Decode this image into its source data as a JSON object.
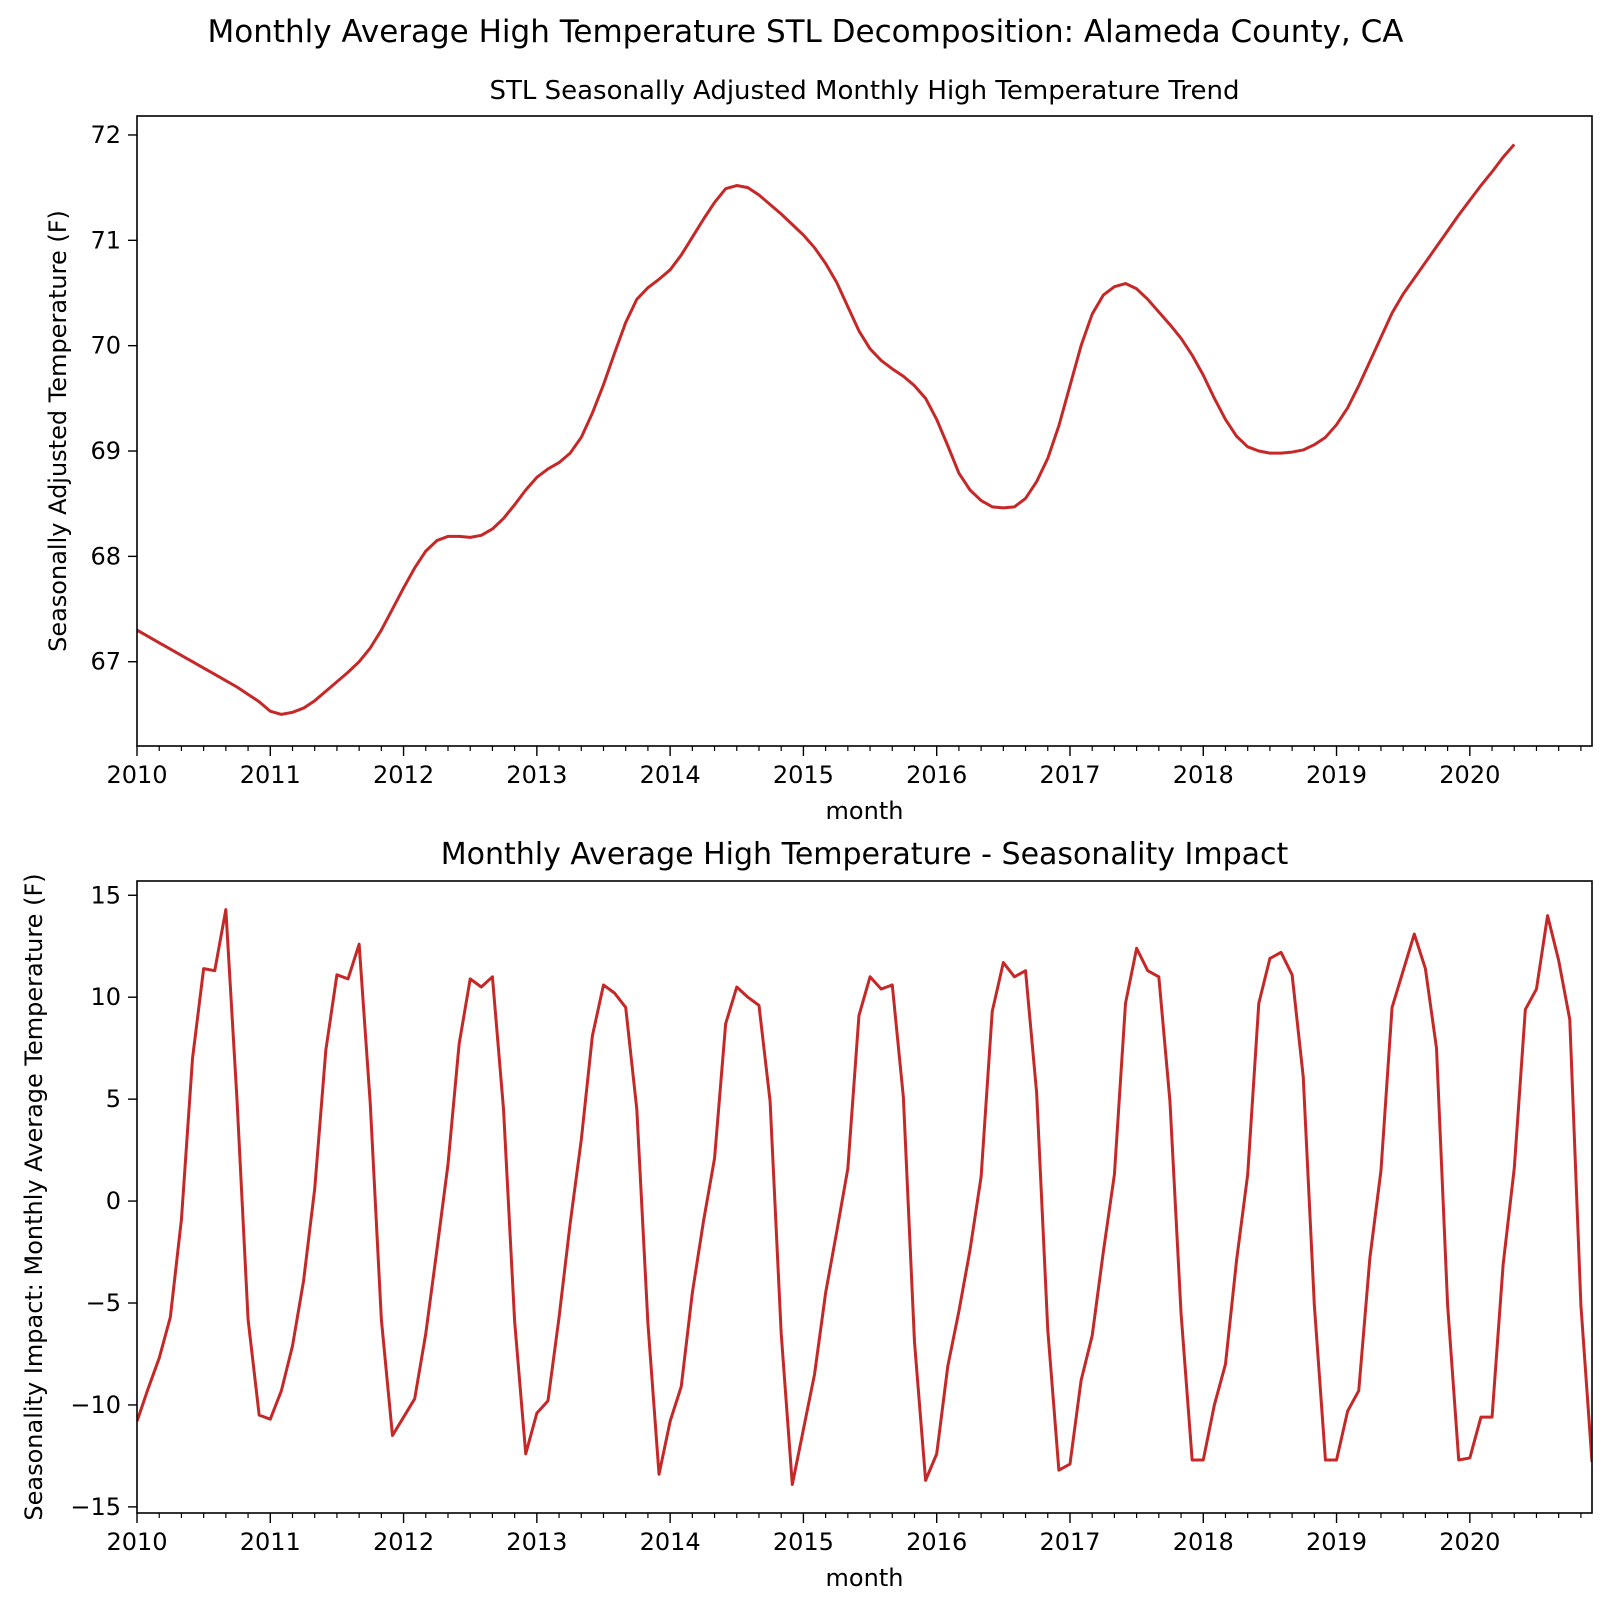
{
  "figure_title": "Monthly Average High Temperature STL Decomposition: Alameda County, CA",
  "line_color": "#c62828",
  "chart_data": [
    {
      "type": "line",
      "title": "STL Seasonally Adjusted Monthly High Temperature Trend",
      "xlabel": "month",
      "ylabel": "Seasonally Adjusted Temperature (F)",
      "x_start": "2010-01",
      "x_end": "2020-12",
      "xlim": [
        "2010-01",
        "2020-12"
      ],
      "ylim": [
        66.2,
        72.18
      ],
      "xticks": [
        "2010",
        "2011",
        "2012",
        "2013",
        "2014",
        "2015",
        "2016",
        "2017",
        "2018",
        "2019",
        "2020"
      ],
      "yticks": [
        "67",
        "68",
        "69",
        "70",
        "71",
        "72"
      ],
      "grid": false,
      "series": [
        {
          "values": [
            67.3,
            67.24,
            67.18,
            67.12,
            67.06,
            67.0,
            66.94,
            66.88,
            66.82,
            66.76,
            66.69,
            66.62,
            66.53,
            66.5,
            66.52,
            66.56,
            66.63,
            66.72,
            66.81,
            66.9,
            67.0,
            67.13,
            67.3,
            67.5,
            67.7,
            67.89,
            68.05,
            68.15,
            68.19,
            68.19,
            68.18,
            68.2,
            68.26,
            68.36,
            68.49,
            68.63,
            68.75,
            68.83,
            68.89,
            68.98,
            69.13,
            69.36,
            69.63,
            69.93,
            70.22,
            70.44,
            70.55,
            70.63,
            70.72,
            70.86,
            71.03,
            71.2,
            71.36,
            71.49,
            71.52,
            71.5,
            71.43,
            71.34,
            71.25,
            71.15,
            71.05,
            70.93,
            70.78,
            70.6,
            70.37,
            70.14,
            69.97,
            69.86,
            69.78,
            69.71,
            69.62,
            69.5,
            69.3,
            69.05,
            68.79,
            68.63,
            68.53,
            68.47,
            68.46,
            68.47,
            68.55,
            68.71,
            68.93,
            69.24,
            69.62,
            70.0,
            70.3,
            70.48,
            70.56,
            70.59,
            70.54,
            70.44,
            70.32,
            70.2,
            70.07,
            69.91,
            69.72,
            69.5,
            69.3,
            69.14,
            69.04,
            69.0,
            68.98,
            68.98,
            68.99,
            69.01,
            69.06,
            69.13,
            69.25,
            69.41,
            69.62,
            69.85,
            70.08,
            70.31,
            70.49,
            70.64,
            70.79,
            70.94,
            71.09,
            71.24,
            71.38,
            71.52,
            71.65,
            71.79,
            71.91
          ]
        }
      ]
    },
    {
      "type": "line",
      "title": "Monthly Average High Temperature - Seasonality Impact",
      "xlabel": "month",
      "ylabel": "Seasonality Impact: Monthly Average Temperature (F)",
      "x_start": "2010-01",
      "x_end": "2020-12",
      "xlim": [
        "2010-01",
        "2020-12"
      ],
      "ylim": [
        -15.3,
        15.7
      ],
      "xticks": [
        "2010",
        "2011",
        "2012",
        "2013",
        "2014",
        "2015",
        "2016",
        "2017",
        "2018",
        "2019",
        "2020"
      ],
      "yticks": [
        "−15",
        "−10",
        "−5",
        "0",
        "5",
        "10",
        "15"
      ],
      "grid": false,
      "series": [
        {
          "values": [
            -10.8,
            -9.2,
            -7.7,
            -5.7,
            -0.9,
            7.0,
            11.4,
            11.3,
            14.3,
            5.0,
            -5.8,
            -10.5,
            -10.7,
            -9.3,
            -7.1,
            -3.9,
            0.6,
            7.4,
            11.1,
            10.9,
            12.6,
            4.8,
            -5.8,
            -11.5,
            -10.6,
            -9.7,
            -6.5,
            -2.4,
            1.8,
            7.7,
            10.9,
            10.5,
            11.0,
            4.5,
            -5.9,
            -12.4,
            -10.4,
            -9.8,
            -5.7,
            -1.1,
            3.0,
            8.1,
            10.6,
            10.2,
            9.5,
            4.5,
            -6.0,
            -13.4,
            -10.8,
            -9.1,
            -4.5,
            -1.0,
            2.1,
            8.7,
            10.5,
            10.0,
            9.6,
            4.9,
            -6.5,
            -13.9,
            -11.2,
            -8.5,
            -4.5,
            -1.5,
            1.6,
            9.1,
            11.0,
            10.4,
            10.6,
            5.1,
            -6.9,
            -13.7,
            -12.4,
            -8.1,
            -5.4,
            -2.4,
            1.2,
            9.3,
            11.7,
            11.0,
            11.3,
            5.3,
            -6.3,
            -13.2,
            -12.9,
            -8.8,
            -6.6,
            -2.5,
            1.3,
            9.7,
            12.4,
            11.3,
            11.0,
            4.9,
            -5.5,
            -12.7,
            -12.7,
            -10.0,
            -8.0,
            -2.9,
            1.3,
            9.7,
            11.9,
            12.2,
            11.1,
            6.1,
            -5.1,
            -12.7,
            -12.7,
            -10.3,
            -9.3,
            -2.8,
            1.5,
            9.5,
            11.3,
            13.1,
            11.4,
            7.5,
            -5.1,
            -12.7,
            -12.6,
            -10.6,
            -10.6,
            -3.1,
            1.6,
            9.4,
            10.4,
            14.0,
            11.8,
            8.9,
            -5.1,
            -12.8
          ]
        }
      ]
    }
  ]
}
